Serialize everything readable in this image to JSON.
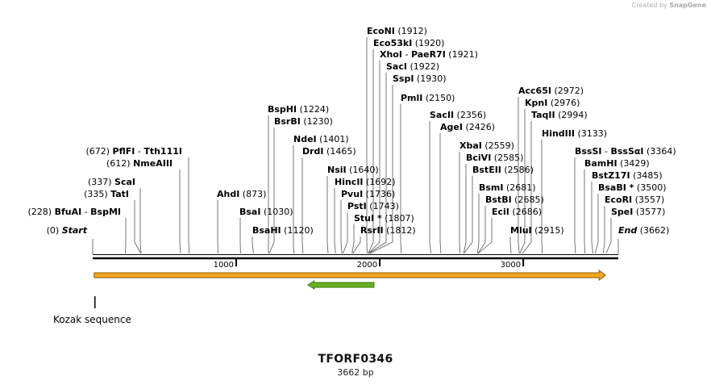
{
  "credit": {
    "prefix": "Created by",
    "brand": "SnapGene"
  },
  "title": "TFORF0346",
  "subtitle": "3662 bp",
  "sequence_length": 3662,
  "axis": {
    "ticks": [
      1000,
      2000,
      3000
    ]
  },
  "features": [
    {
      "name": "orf-arrow",
      "start": 10,
      "end": 3562,
      "color": "#f5a623",
      "direction": "forward"
    },
    {
      "name": "green-arrow",
      "start": 1510,
      "end": 1960,
      "color": "#6ab023",
      "direction": "reverse"
    },
    {
      "name": "kozak-sequence",
      "label": "Kozak sequence",
      "position": 10
    }
  ],
  "sites": [
    {
      "name": "EcoNI",
      "pos": 1912,
      "num": "(1912)"
    },
    {
      "name": "Eco53kI",
      "pos": 1920,
      "num": "(1920)"
    },
    {
      "name": "XhoI",
      "alt": "PaeR7I",
      "pos": 1921,
      "num": "(1921)"
    },
    {
      "name": "SacI",
      "pos": 1922,
      "num": "(1922)"
    },
    {
      "name": "SspI",
      "pos": 1930,
      "num": "(1930)"
    },
    {
      "name": "PmlI",
      "pos": 2150,
      "num": "(2150)"
    },
    {
      "name": "BspHI",
      "pos": 1224,
      "num": "(1224)"
    },
    {
      "name": "BsrBI",
      "pos": 1230,
      "num": "(1230)"
    },
    {
      "name": "SacII",
      "pos": 2356,
      "num": "(2356)"
    },
    {
      "name": "AgeI",
      "pos": 2426,
      "num": "(2426)"
    },
    {
      "name": "NdeI",
      "pos": 1401,
      "num": "(1401)"
    },
    {
      "name": "DrdI",
      "pos": 1465,
      "num": "(1465)"
    },
    {
      "name": "PflFI",
      "alt": "Tth111I",
      "pos": 672,
      "num": "(672)",
      "side": "left"
    },
    {
      "name": "NmeAIII",
      "pos": 612,
      "num": "(612)",
      "side": "left"
    },
    {
      "name": "NsiI",
      "pos": 1640,
      "num": "(1640)"
    },
    {
      "name": "HincII",
      "pos": 1692,
      "num": "(1692)"
    },
    {
      "name": "PvuI",
      "pos": 1736,
      "num": "(1736)"
    },
    {
      "name": "PstI",
      "pos": 1743,
      "num": "(1743)"
    },
    {
      "name": "StuI",
      "star": "*",
      "pos": 1807,
      "num": "(1807)"
    },
    {
      "name": "RsrII",
      "pos": 1812,
      "num": "(1812)"
    },
    {
      "name": "ScaI",
      "pos": 337,
      "num": "(337)",
      "side": "left"
    },
    {
      "name": "TatI",
      "pos": 335,
      "num": "(335)",
      "side": "left"
    },
    {
      "name": "BfuAI",
      "alt": "BspMI",
      "pos": 228,
      "num": "(228)",
      "side": "left"
    },
    {
      "name": "AhdI",
      "pos": 873,
      "num": "(873)"
    },
    {
      "name": "BsaI",
      "pos": 1030,
      "num": "(1030)"
    },
    {
      "name": "BsaHI",
      "pos": 1120,
      "num": "(1120)"
    },
    {
      "name": "Start",
      "pos": 0,
      "num": "(0)",
      "side": "left",
      "italic": true
    },
    {
      "name": "Acc65I",
      "pos": 2972,
      "num": "(2972)"
    },
    {
      "name": "KpnI",
      "pos": 2976,
      "num": "(2976)"
    },
    {
      "name": "TaqII",
      "pos": 2994,
      "num": "(2994)"
    },
    {
      "name": "HindIII",
      "pos": 3133,
      "num": "(3133)"
    },
    {
      "name": "XbaI",
      "pos": 2559,
      "num": "(2559)"
    },
    {
      "name": "BciVI",
      "pos": 2585,
      "num": "(2585)"
    },
    {
      "name": "BstEII",
      "pos": 2586,
      "num": "(2586)"
    },
    {
      "name": "BsmI",
      "pos": 2681,
      "num": "(2681)"
    },
    {
      "name": "BstBI",
      "pos": 2685,
      "num": "(2685)"
    },
    {
      "name": "EciI",
      "pos": 2686,
      "num": "(2686)"
    },
    {
      "name": "MluI",
      "pos": 2915,
      "num": "(2915)"
    },
    {
      "name": "BssSI",
      "alt": "BssSαI",
      "pos": 3364,
      "num": "(3364)"
    },
    {
      "name": "BamHI",
      "pos": 3429,
      "num": "(3429)"
    },
    {
      "name": "BstZ17I",
      "pos": 3485,
      "num": "(3485)"
    },
    {
      "name": "BsaBI",
      "star": "*",
      "pos": 3500,
      "num": "(3500)"
    },
    {
      "name": "EcoRI",
      "pos": 3557,
      "num": "(3557)"
    },
    {
      "name": "SpeI",
      "pos": 3577,
      "num": "(3577)"
    },
    {
      "name": "End",
      "pos": 3662,
      "num": "(3662)",
      "italic": true
    }
  ]
}
